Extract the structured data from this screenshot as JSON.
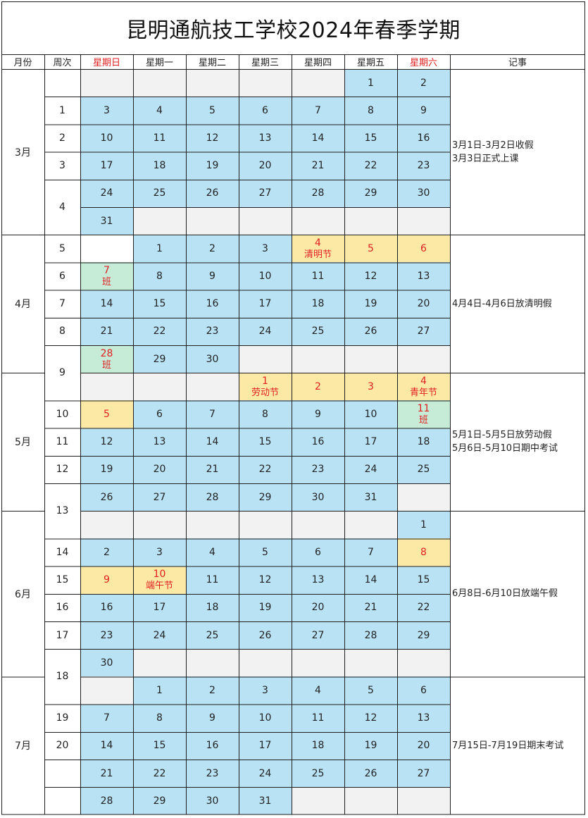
{
  "title": "昆明通航技工学校2024年春季学期",
  "headers": {
    "month": "月份",
    "week": "周次",
    "days": [
      "星期日",
      "星期一",
      "星期二",
      "星期三",
      "星期四",
      "星期五",
      "星期六"
    ],
    "events": "记事"
  },
  "colors": {
    "blue": "#b9e3f5",
    "gray": "#f2f2f2",
    "holiday": "#fde9a6",
    "makeup": "#c6ebd6",
    "red_text": "#e02020"
  },
  "rows": [
    {
      "week": "",
      "cells": [
        [
          "",
          "gray"
        ],
        [
          "",
          "gray"
        ],
        [
          "",
          "gray"
        ],
        [
          "",
          "gray"
        ],
        [
          "",
          "gray"
        ],
        [
          "1",
          "blue"
        ],
        [
          "2",
          "blue"
        ]
      ]
    },
    {
      "week": "1",
      "cells": [
        [
          "3",
          "blue"
        ],
        [
          "4",
          "blue"
        ],
        [
          "5",
          "blue"
        ],
        [
          "6",
          "blue"
        ],
        [
          "7",
          "blue"
        ],
        [
          "8",
          "blue"
        ],
        [
          "9",
          "blue"
        ]
      ]
    },
    {
      "week": "2",
      "cells": [
        [
          "10",
          "blue"
        ],
        [
          "11",
          "blue"
        ],
        [
          "12",
          "blue"
        ],
        [
          "13",
          "blue"
        ],
        [
          "14",
          "blue"
        ],
        [
          "15",
          "blue"
        ],
        [
          "16",
          "blue"
        ]
      ]
    },
    {
      "week": "3",
      "cells": [
        [
          "17",
          "blue"
        ],
        [
          "18",
          "blue"
        ],
        [
          "19",
          "blue"
        ],
        [
          "20",
          "blue"
        ],
        [
          "21",
          "blue"
        ],
        [
          "22",
          "blue"
        ],
        [
          "23",
          "blue"
        ]
      ]
    },
    {
      "week": "4",
      "cells": [
        [
          "24",
          "blue"
        ],
        [
          "25",
          "blue"
        ],
        [
          "26",
          "blue"
        ],
        [
          "27",
          "blue"
        ],
        [
          "28",
          "blue"
        ],
        [
          "29",
          "blue"
        ],
        [
          "30",
          "blue"
        ]
      ]
    },
    {
      "week": "",
      "cells": [
        [
          "31",
          "blue"
        ],
        [
          "",
          "gray"
        ],
        [
          "",
          "gray"
        ],
        [
          "",
          "gray"
        ],
        [
          "",
          "gray"
        ],
        [
          "",
          "gray"
        ],
        [
          "",
          "gray"
        ]
      ]
    },
    {
      "week": "5",
      "cells": [
        [
          "",
          "white"
        ],
        [
          "1",
          "blue"
        ],
        [
          "2",
          "blue"
        ],
        [
          "3",
          "blue"
        ],
        [
          "4",
          "yellow",
          "清明节"
        ],
        [
          "5",
          "yellow"
        ],
        [
          "6",
          "yellow"
        ]
      ]
    },
    {
      "week": "6",
      "cells": [
        [
          "7",
          "green",
          "班"
        ],
        [
          "8",
          "blue"
        ],
        [
          "9",
          "blue"
        ],
        [
          "10",
          "blue"
        ],
        [
          "11",
          "blue"
        ],
        [
          "12",
          "blue"
        ],
        [
          "13",
          "blue"
        ]
      ]
    },
    {
      "week": "7",
      "cells": [
        [
          "14",
          "blue"
        ],
        [
          "15",
          "blue"
        ],
        [
          "16",
          "blue"
        ],
        [
          "17",
          "blue"
        ],
        [
          "18",
          "blue"
        ],
        [
          "19",
          "blue"
        ],
        [
          "20",
          "blue"
        ]
      ]
    },
    {
      "week": "8",
      "cells": [
        [
          "21",
          "blue"
        ],
        [
          "22",
          "blue"
        ],
        [
          "23",
          "blue"
        ],
        [
          "24",
          "blue"
        ],
        [
          "25",
          "blue"
        ],
        [
          "26",
          "blue"
        ],
        [
          "27",
          "blue"
        ]
      ]
    },
    {
      "week": "9",
      "cells": [
        [
          "28",
          "green",
          "班"
        ],
        [
          "29",
          "blue"
        ],
        [
          "30",
          "blue"
        ],
        [
          "",
          "gray"
        ],
        [
          "",
          "gray"
        ],
        [
          "",
          "gray"
        ],
        [
          "",
          "gray"
        ]
      ]
    },
    {
      "week": "",
      "cells": [
        [
          "",
          "gray"
        ],
        [
          "",
          "gray"
        ],
        [
          "",
          "gray"
        ],
        [
          "1",
          "yellow",
          "劳动节"
        ],
        [
          "2",
          "yellow"
        ],
        [
          "3",
          "yellow"
        ],
        [
          "4",
          "yellow",
          "青年节"
        ]
      ]
    },
    {
      "week": "10",
      "cells": [
        [
          "5",
          "yellow"
        ],
        [
          "6",
          "blue"
        ],
        [
          "7",
          "blue"
        ],
        [
          "8",
          "blue"
        ],
        [
          "9",
          "blue"
        ],
        [
          "10",
          "blue"
        ],
        [
          "11",
          "green",
          "班"
        ]
      ]
    },
    {
      "week": "11",
      "cells": [
        [
          "12",
          "blue"
        ],
        [
          "13",
          "blue"
        ],
        [
          "14",
          "blue"
        ],
        [
          "15",
          "blue"
        ],
        [
          "16",
          "blue"
        ],
        [
          "17",
          "blue"
        ],
        [
          "18",
          "blue"
        ]
      ]
    },
    {
      "week": "12",
      "cells": [
        [
          "19",
          "blue"
        ],
        [
          "20",
          "blue"
        ],
        [
          "21",
          "blue"
        ],
        [
          "22",
          "blue"
        ],
        [
          "23",
          "blue"
        ],
        [
          "24",
          "blue"
        ],
        [
          "25",
          "blue"
        ]
      ]
    },
    {
      "week": "13",
      "cells": [
        [
          "26",
          "blue"
        ],
        [
          "27",
          "blue"
        ],
        [
          "28",
          "blue"
        ],
        [
          "29",
          "blue"
        ],
        [
          "30",
          "blue"
        ],
        [
          "31",
          "blue"
        ],
        [
          "",
          "gray"
        ]
      ]
    },
    {
      "week": "",
      "cells": [
        [
          "",
          "gray"
        ],
        [
          "",
          "gray"
        ],
        [
          "",
          "gray"
        ],
        [
          "",
          "gray"
        ],
        [
          "",
          "gray"
        ],
        [
          "",
          "gray"
        ],
        [
          "1",
          "blue"
        ]
      ]
    },
    {
      "week": "14",
      "cells": [
        [
          "2",
          "blue"
        ],
        [
          "3",
          "blue"
        ],
        [
          "4",
          "blue"
        ],
        [
          "5",
          "blue"
        ],
        [
          "6",
          "blue"
        ],
        [
          "7",
          "blue"
        ],
        [
          "8",
          "yellow"
        ]
      ]
    },
    {
      "week": "15",
      "cells": [
        [
          "9",
          "yellow"
        ],
        [
          "10",
          "yellow",
          "端午节"
        ],
        [
          "11",
          "blue"
        ],
        [
          "12",
          "blue"
        ],
        [
          "13",
          "blue"
        ],
        [
          "14",
          "blue"
        ],
        [
          "15",
          "blue"
        ]
      ]
    },
    {
      "week": "16",
      "cells": [
        [
          "16",
          "blue"
        ],
        [
          "17",
          "blue"
        ],
        [
          "18",
          "blue"
        ],
        [
          "19",
          "blue"
        ],
        [
          "20",
          "blue"
        ],
        [
          "21",
          "blue"
        ],
        [
          "22",
          "blue"
        ]
      ]
    },
    {
      "week": "17",
      "cells": [
        [
          "23",
          "blue"
        ],
        [
          "24",
          "blue"
        ],
        [
          "25",
          "blue"
        ],
        [
          "26",
          "blue"
        ],
        [
          "27",
          "blue"
        ],
        [
          "28",
          "blue"
        ],
        [
          "29",
          "blue"
        ]
      ]
    },
    {
      "week": "18",
      "cells": [
        [
          "30",
          "blue"
        ],
        [
          "",
          "gray"
        ],
        [
          "",
          "gray"
        ],
        [
          "",
          "gray"
        ],
        [
          "",
          "gray"
        ],
        [
          "",
          "gray"
        ],
        [
          "",
          "gray"
        ]
      ]
    },
    {
      "week": "",
      "cells": [
        [
          "",
          "gray"
        ],
        [
          "1",
          "blue"
        ],
        [
          "2",
          "blue"
        ],
        [
          "3",
          "blue"
        ],
        [
          "4",
          "blue"
        ],
        [
          "5",
          "blue"
        ],
        [
          "6",
          "blue"
        ]
      ]
    },
    {
      "week": "19",
      "cells": [
        [
          "7",
          "blue"
        ],
        [
          "8",
          "blue"
        ],
        [
          "9",
          "blue"
        ],
        [
          "10",
          "blue"
        ],
        [
          "11",
          "blue"
        ],
        [
          "12",
          "blue"
        ],
        [
          "13",
          "blue"
        ]
      ]
    },
    {
      "week": "20",
      "cells": [
        [
          "14",
          "blue"
        ],
        [
          "15",
          "blue"
        ],
        [
          "16",
          "blue"
        ],
        [
          "17",
          "blue"
        ],
        [
          "18",
          "blue"
        ],
        [
          "19",
          "blue"
        ],
        [
          "20",
          "blue"
        ]
      ]
    },
    {
      "week": "",
      "cells": [
        [
          "21",
          "blue"
        ],
        [
          "22",
          "blue"
        ],
        [
          "23",
          "blue"
        ],
        [
          "24",
          "blue"
        ],
        [
          "25",
          "blue"
        ],
        [
          "26",
          "blue"
        ],
        [
          "27",
          "blue"
        ]
      ]
    },
    {
      "week": "",
      "cells": [
        [
          "28",
          "blue"
        ],
        [
          "29",
          "blue"
        ],
        [
          "30",
          "blue"
        ],
        [
          "31",
          "blue"
        ],
        [
          "",
          "gray"
        ],
        [
          "",
          "gray"
        ],
        [
          "",
          "gray"
        ]
      ]
    }
  ],
  "months": [
    {
      "label": "3月",
      "events": [
        "3月1日-3月2日收假",
        "3月3日正式上课"
      ]
    },
    {
      "label": "4月",
      "events": [
        "4月4日-4月6日放清明假"
      ]
    },
    {
      "label": "5月",
      "events": [
        "5月1日-5月5日放劳动假",
        "5月6日-5月10日期中考试"
      ]
    },
    {
      "label": "6月",
      "events": [
        "6月8日-6月10日放端午假"
      ]
    },
    {
      "label": "7月",
      "events": [
        "7月15日-7月19日期末考试"
      ]
    }
  ]
}
